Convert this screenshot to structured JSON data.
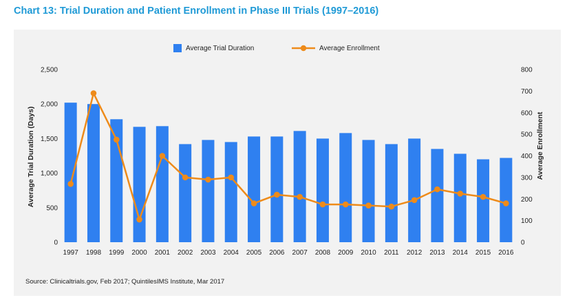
{
  "title": "Chart 13: Trial Duration and Patient Enrollment in Phase III Trials (1997–2016)",
  "source": "Source: Clinicaltrials.gov, Feb 2017; QuintilesIMS Institute, Mar 2017",
  "colors": {
    "title": "#1f9ad6",
    "bar": "#2f80f0",
    "line": "#ee8b1a",
    "panel": "#f2f2f2"
  },
  "chart_data": {
    "type": "bar",
    "categories": [
      "1997",
      "1998",
      "1999",
      "2000",
      "2001",
      "2002",
      "2003",
      "2004",
      "2005",
      "2006",
      "2007",
      "2008",
      "2009",
      "2010",
      "2011",
      "2012",
      "2013",
      "2014",
      "2015",
      "2016"
    ],
    "series": [
      {
        "name": "Average Trial Duration",
        "type": "bar",
        "axis": "left",
        "values": [
          2020,
          2000,
          1780,
          1670,
          1680,
          1420,
          1480,
          1450,
          1530,
          1530,
          1610,
          1500,
          1580,
          1480,
          1420,
          1500,
          1350,
          1280,
          1200,
          1220
        ]
      },
      {
        "name": "Average Enrollment",
        "type": "line",
        "axis": "right",
        "values": [
          270,
          690,
          475,
          105,
          400,
          300,
          290,
          300,
          180,
          220,
          210,
          175,
          175,
          170,
          165,
          195,
          245,
          225,
          210,
          180
        ]
      }
    ],
    "ylabel": "Average Trial Duration (Days)",
    "y2label": "Average Enrollment",
    "ylim": [
      0,
      2500
    ],
    "y2lim": [
      0,
      800
    ],
    "yticks": [
      "0",
      "500",
      "1,000",
      "1,500",
      "2,000",
      "2,500"
    ],
    "y2ticks": [
      "0",
      "100",
      "200",
      "300",
      "400",
      "500",
      "600",
      "700",
      "800"
    ],
    "legend_position": "top-center",
    "grid": false
  }
}
